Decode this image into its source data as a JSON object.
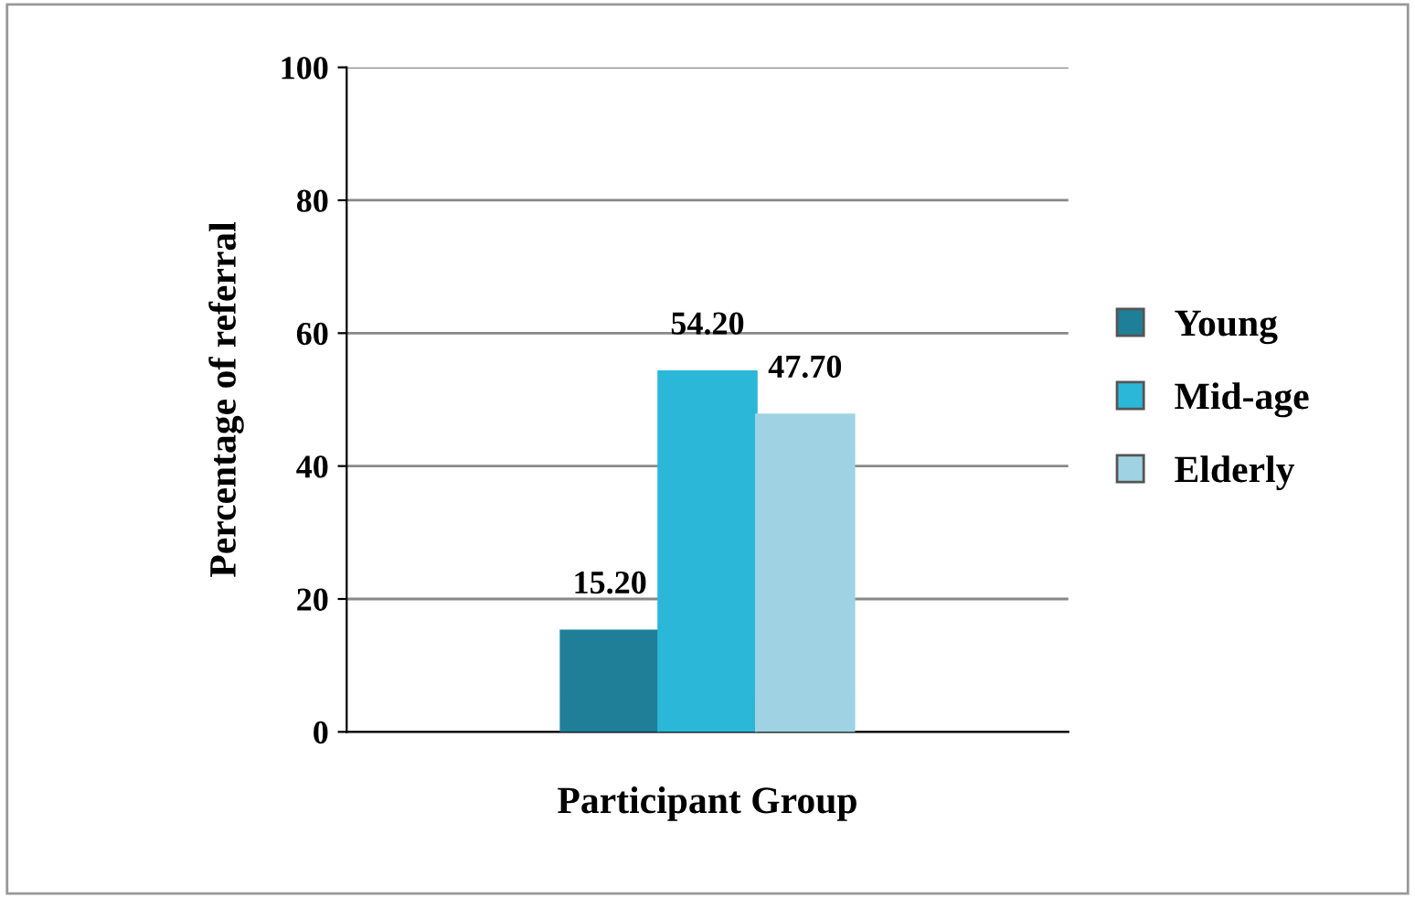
{
  "chart_data": {
    "type": "bar",
    "xlabel": "Participant Group",
    "ylabel": "Percentage of referral",
    "categories": [
      null
    ],
    "series": [
      {
        "name": "Young",
        "color": "#1f7f99",
        "values": [
          15.2
        ],
        "value_labels": [
          "15.20"
        ]
      },
      {
        "name": "Mid-age",
        "color": "#2bb8d8",
        "values": [
          54.2
        ],
        "value_labels": [
          "54.20"
        ]
      },
      {
        "name": "Elderly",
        "color": "#9fd3e4",
        "values": [
          47.7
        ],
        "value_labels": [
          "47.70"
        ]
      }
    ],
    "ylim": [
      0,
      100
    ],
    "yticks": [
      0,
      20,
      40,
      60,
      80,
      100
    ],
    "grid": "y",
    "legend": "right"
  }
}
